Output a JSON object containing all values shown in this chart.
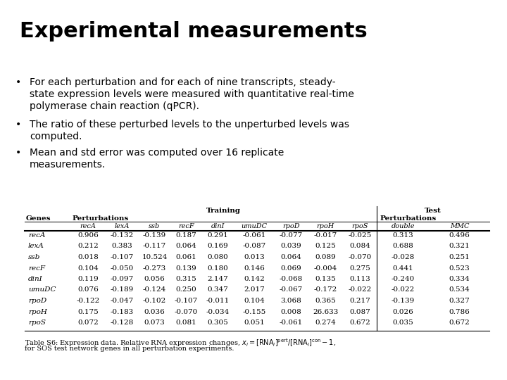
{
  "title": "Experimental measurements",
  "bullets": [
    "For each perturbation and for each of nine transcripts, steady-\nstate expression levels were measured with quantitative real-time\npolymerase chain reaction (qPCR).",
    "The ratio of these perturbed levels to the unperturbed levels was\ncomputed.",
    "Mean and std error was computed over 16 replicate\nmeasurements."
  ],
  "col_names": [
    "recA",
    "lexA",
    "ssb",
    "recF",
    "dinI",
    "umuDC",
    "rpoD",
    "rpoH",
    "rpoS",
    "double",
    "MMC"
  ],
  "rows": [
    [
      "recA",
      "0.906",
      "-0.132",
      "-0.139",
      "0.187",
      "0.291",
      "-0.061",
      "-0.077",
      "-0.017",
      "-0.025",
      "0.313",
      "0.496"
    ],
    [
      "lexA",
      "0.212",
      "0.383",
      "-0.117",
      "0.064",
      "0.169",
      "-0.087",
      "0.039",
      "0.125",
      "0.084",
      "0.688",
      "0.321"
    ],
    [
      "ssb",
      "0.018",
      "-0.107",
      "10.524",
      "0.061",
      "0.080",
      "0.013",
      "0.064",
      "0.089",
      "-0.070",
      "-0.028",
      "0.251"
    ],
    [
      "recF",
      "0.104",
      "-0.050",
      "-0.273",
      "0.139",
      "0.180",
      "0.146",
      "0.069",
      "-0.004",
      "0.275",
      "0.441",
      "0.523"
    ],
    [
      "dinI",
      "0.119",
      "-0.097",
      "0.056",
      "0.315",
      "2.147",
      "0.142",
      "-0.068",
      "0.135",
      "0.113",
      "-0.240",
      "0.334"
    ],
    [
      "umuDC",
      "0.076",
      "-0.189",
      "-0.124",
      "0.250",
      "0.347",
      "2.017",
      "-0.067",
      "-0.172",
      "-0.022",
      "-0.022",
      "0.534"
    ],
    [
      "rpoD",
      "-0.122",
      "-0.047",
      "-0.102",
      "-0.107",
      "-0.011",
      "0.104",
      "3.068",
      "0.365",
      "0.217",
      "-0.139",
      "0.327"
    ],
    [
      "rpoH",
      "0.175",
      "-0.183",
      "0.036",
      "-0.070",
      "-0.034",
      "-0.155",
      "0.008",
      "26.633",
      "0.087",
      "0.026",
      "0.786"
    ],
    [
      "rpoS",
      "0.072",
      "-0.128",
      "0.073",
      "0.081",
      "0.305",
      "0.051",
      "-0.061",
      "0.274",
      "0.672",
      "0.035",
      "0.672"
    ]
  ],
  "background_color": "#ffffff"
}
